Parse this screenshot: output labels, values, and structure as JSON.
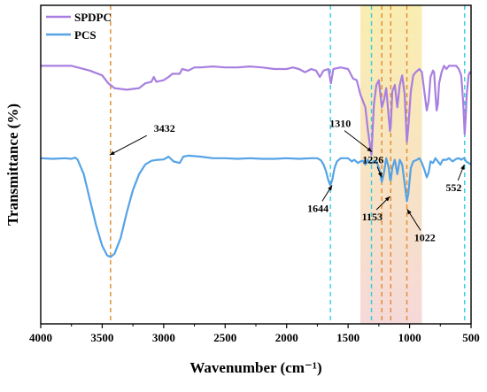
{
  "chart_data": {
    "type": "line",
    "title": "",
    "xlabel": "Wavenumber (cm⁻¹)",
    "ylabel": "Transmittance (%)",
    "xlim": [
      4000,
      500
    ],
    "x_reversed": true,
    "y_tick_labels": false,
    "xticks": [
      4000,
      3500,
      3000,
      2500,
      2000,
      1500,
      1000,
      500
    ],
    "grid": false,
    "legend_position": "top-left",
    "series": [
      {
        "name": "SPDPC",
        "color": "#a87fe0",
        "points": [
          [
            4000,
            0.81
          ],
          [
            3900,
            0.81
          ],
          [
            3750,
            0.81
          ],
          [
            3700,
            0.805
          ],
          [
            3600,
            0.795
          ],
          [
            3500,
            0.78
          ],
          [
            3450,
            0.755
          ],
          [
            3400,
            0.74
          ],
          [
            3300,
            0.735
          ],
          [
            3200,
            0.74
          ],
          [
            3150,
            0.755
          ],
          [
            3100,
            0.76
          ],
          [
            3080,
            0.775
          ],
          [
            3060,
            0.76
          ],
          [
            3000,
            0.765
          ],
          [
            2960,
            0.775
          ],
          [
            2930,
            0.785
          ],
          [
            2870,
            0.785
          ],
          [
            2850,
            0.8
          ],
          [
            2800,
            0.795
          ],
          [
            2750,
            0.805
          ],
          [
            2700,
            0.805
          ],
          [
            2600,
            0.808
          ],
          [
            2500,
            0.805
          ],
          [
            2400,
            0.805
          ],
          [
            2300,
            0.808
          ],
          [
            2200,
            0.805
          ],
          [
            2100,
            0.8
          ],
          [
            2000,
            0.8
          ],
          [
            1950,
            0.805
          ],
          [
            1900,
            0.8
          ],
          [
            1850,
            0.79
          ],
          [
            1800,
            0.8
          ],
          [
            1760,
            0.795
          ],
          [
            1730,
            0.775
          ],
          [
            1700,
            0.795
          ],
          [
            1660,
            0.8
          ],
          [
            1640,
            0.755
          ],
          [
            1620,
            0.8
          ],
          [
            1560,
            0.805
          ],
          [
            1500,
            0.8
          ],
          [
            1460,
            0.77
          ],
          [
            1430,
            0.765
          ],
          [
            1400,
            0.72
          ],
          [
            1380,
            0.7
          ],
          [
            1360,
            0.68
          ],
          [
            1340,
            0.61
          ],
          [
            1320,
            0.555
          ],
          [
            1310,
            0.53
          ],
          [
            1290,
            0.69
          ],
          [
            1270,
            0.75
          ],
          [
            1250,
            0.765
          ],
          [
            1240,
            0.73
          ],
          [
            1226,
            0.68
          ],
          [
            1210,
            0.7
          ],
          [
            1190,
            0.74
          ],
          [
            1170,
            0.65
          ],
          [
            1160,
            0.605
          ],
          [
            1153,
            0.62
          ],
          [
            1140,
            0.73
          ],
          [
            1120,
            0.75
          ],
          [
            1100,
            0.68
          ],
          [
            1080,
            0.75
          ],
          [
            1060,
            0.78
          ],
          [
            1040,
            0.72
          ],
          [
            1022,
            0.57
          ],
          [
            1010,
            0.62
          ],
          [
            990,
            0.73
          ],
          [
            970,
            0.78
          ],
          [
            950,
            0.79
          ],
          [
            920,
            0.8
          ],
          [
            900,
            0.79
          ],
          [
            880,
            0.73
          ],
          [
            860,
            0.67
          ],
          [
            845,
            0.7
          ],
          [
            830,
            0.775
          ],
          [
            810,
            0.795
          ],
          [
            800,
            0.79
          ],
          [
            790,
            0.725
          ],
          [
            780,
            0.67
          ],
          [
            770,
            0.69
          ],
          [
            760,
            0.755
          ],
          [
            740,
            0.79
          ],
          [
            720,
            0.81
          ],
          [
            700,
            0.8
          ],
          [
            680,
            0.81
          ],
          [
            650,
            0.81
          ],
          [
            620,
            0.81
          ],
          [
            600,
            0.8
          ],
          [
            580,
            0.78
          ],
          [
            565,
            0.7
          ],
          [
            552,
            0.595
          ],
          [
            545,
            0.64
          ],
          [
            535,
            0.72
          ],
          [
            520,
            0.78
          ],
          [
            510,
            0.79
          ],
          [
            500,
            0.785
          ]
        ]
      },
      {
        "name": "PCS",
        "color": "#55a3e6",
        "points": [
          [
            4000,
            0.52
          ],
          [
            3900,
            0.518
          ],
          [
            3800,
            0.52
          ],
          [
            3750,
            0.518
          ],
          [
            3720,
            0.522
          ],
          [
            3700,
            0.515
          ],
          [
            3650,
            0.47
          ],
          [
            3600,
            0.39
          ],
          [
            3550,
            0.31
          ],
          [
            3500,
            0.245
          ],
          [
            3460,
            0.215
          ],
          [
            3432,
            0.21
          ],
          [
            3400,
            0.22
          ],
          [
            3350,
            0.27
          ],
          [
            3300,
            0.35
          ],
          [
            3250,
            0.42
          ],
          [
            3200,
            0.47
          ],
          [
            3150,
            0.5
          ],
          [
            3100,
            0.512
          ],
          [
            3050,
            0.515
          ],
          [
            3000,
            0.516
          ],
          [
            2960,
            0.525
          ],
          [
            2920,
            0.51
          ],
          [
            2870,
            0.505
          ],
          [
            2840,
            0.525
          ],
          [
            2800,
            0.528
          ],
          [
            2700,
            0.525
          ],
          [
            2600,
            0.52
          ],
          [
            2500,
            0.52
          ],
          [
            2400,
            0.518
          ],
          [
            2300,
            0.52
          ],
          [
            2200,
            0.518
          ],
          [
            2100,
            0.518
          ],
          [
            2000,
            0.52
          ],
          [
            1900,
            0.518
          ],
          [
            1800,
            0.52
          ],
          [
            1750,
            0.52
          ],
          [
            1720,
            0.513
          ],
          [
            1700,
            0.5
          ],
          [
            1680,
            0.48
          ],
          [
            1660,
            0.45
          ],
          [
            1644,
            0.435
          ],
          [
            1630,
            0.45
          ],
          [
            1610,
            0.49
          ],
          [
            1590,
            0.51
          ],
          [
            1560,
            0.52
          ],
          [
            1520,
            0.52
          ],
          [
            1500,
            0.52
          ],
          [
            1470,
            0.51
          ],
          [
            1450,
            0.515
          ],
          [
            1420,
            0.505
          ],
          [
            1400,
            0.51
          ],
          [
            1380,
            0.512
          ],
          [
            1360,
            0.5
          ],
          [
            1340,
            0.515
          ],
          [
            1320,
            0.505
          ],
          [
            1300,
            0.505
          ],
          [
            1290,
            0.512
          ],
          [
            1270,
            0.51
          ],
          [
            1250,
            0.49
          ],
          [
            1240,
            0.475
          ],
          [
            1226,
            0.445
          ],
          [
            1210,
            0.47
          ],
          [
            1190,
            0.52
          ],
          [
            1170,
            0.49
          ],
          [
            1160,
            0.455
          ],
          [
            1153,
            0.45
          ],
          [
            1140,
            0.49
          ],
          [
            1120,
            0.515
          ],
          [
            1100,
            0.47
          ],
          [
            1080,
            0.515
          ],
          [
            1060,
            0.5
          ],
          [
            1040,
            0.44
          ],
          [
            1022,
            0.385
          ],
          [
            1010,
            0.41
          ],
          [
            990,
            0.49
          ],
          [
            970,
            0.51
          ],
          [
            940,
            0.515
          ],
          [
            920,
            0.52
          ],
          [
            900,
            0.505
          ],
          [
            880,
            0.485
          ],
          [
            860,
            0.46
          ],
          [
            845,
            0.475
          ],
          [
            830,
            0.51
          ],
          [
            810,
            0.505
          ],
          [
            790,
            0.52
          ],
          [
            770,
            0.51
          ],
          [
            750,
            0.5
          ],
          [
            730,
            0.515
          ],
          [
            700,
            0.515
          ],
          [
            680,
            0.52
          ],
          [
            650,
            0.51
          ],
          [
            620,
            0.518
          ],
          [
            600,
            0.52
          ],
          [
            580,
            0.515
          ],
          [
            560,
            0.52
          ],
          [
            552,
            0.518
          ],
          [
            540,
            0.51
          ],
          [
            520,
            0.505
          ],
          [
            500,
            0.5
          ]
        ]
      }
    ],
    "reference_lines": [
      {
        "x": 3432,
        "color": "#e0892a"
      },
      {
        "x": 1644,
        "color": "#33ccdd"
      },
      {
        "x": 1310,
        "color": "#33ccdd"
      },
      {
        "x": 1226,
        "color": "#e0892a"
      },
      {
        "x": 1153,
        "color": "#e0892a"
      },
      {
        "x": 1022,
        "color": "#e0892a"
      },
      {
        "x": 552,
        "color": "#33ccdd"
      }
    ],
    "shaded_regions": [
      {
        "x_from": 1400,
        "x_to": 900,
        "color": "#f5df70",
        "gradient_to": "#f0c4c4"
      }
    ],
    "annotations": [
      {
        "label": "3432",
        "target": [
          3440,
          0.53
        ]
      },
      {
        "label": "1310",
        "target": [
          1305,
          0.54
        ]
      },
      {
        "label": "1644",
        "target": [
          1630,
          0.435
        ]
      },
      {
        "label": "1226",
        "target": [
          1226,
          0.46
        ]
      },
      {
        "label": "1153",
        "target": [
          1160,
          0.4
        ]
      },
      {
        "label": "1022",
        "target": [
          1020,
          0.36
        ]
      },
      {
        "label": "552",
        "target": [
          555,
          0.5
        ]
      }
    ]
  }
}
